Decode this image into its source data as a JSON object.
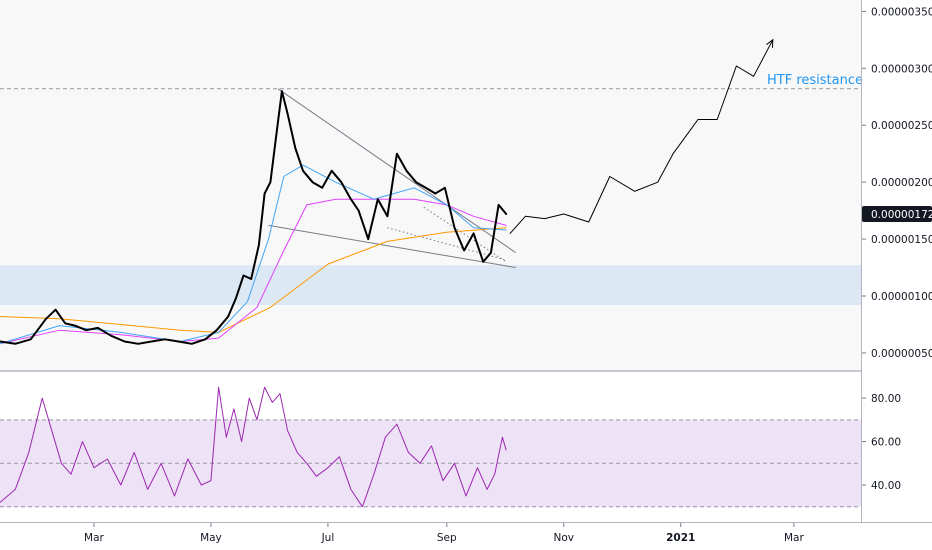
{
  "chart_data": [
    {
      "type": "line",
      "name": "price-panel",
      "y_scale": "linear",
      "ylim": [
        3.5e-07,
        3.6e-06
      ],
      "y_ticks": [
        {
          "value": 3.5e-06,
          "label": "0.00000350"
        },
        {
          "value": 3e-06,
          "label": "0.00000300"
        },
        {
          "value": 2.5e-06,
          "label": "0.00000250"
        },
        {
          "value": 2e-06,
          "label": "0.00000200"
        },
        {
          "value": 1.5e-06,
          "label": "0.00000150"
        },
        {
          "value": 1e-06,
          "label": "0.00000100"
        },
        {
          "value": 5e-07,
          "label": "0.00000050"
        }
      ],
      "x_ticks": [
        {
          "value": "2020-03-01",
          "label": "Mar"
        },
        {
          "value": "2020-05-01",
          "label": "May"
        },
        {
          "value": "2020-07-01",
          "label": "Jul"
        },
        {
          "value": "2020-09-01",
          "label": "Sep"
        },
        {
          "value": "2020-11-01",
          "label": "Nov"
        },
        {
          "value": "2021-01-01",
          "label": "2021"
        },
        {
          "value": "2021-03-01",
          "label": "Mar"
        }
      ],
      "xlim": [
        "2020-01-12",
        "2021-04-05"
      ],
      "last_price": {
        "value": 1.72e-06,
        "label": "0.00000172",
        "color": "#131722"
      },
      "annotation": {
        "text": "HTF resistance",
        "color": "#2196f3"
      },
      "resistance_level": 2.82e-06,
      "support_zone": [
        9.2e-07,
        1.27e-06
      ],
      "colors": {
        "price": "#000000",
        "ema_fast": "#42a5f5",
        "ema_mid": "#e040fb",
        "ema_slow": "#ff9800",
        "zone": "#dce9f4",
        "trendline": "#787b86",
        "projection": "#000000"
      },
      "series": [
        {
          "role": "price",
          "x": [
            "2020-01-12",
            "2020-01-20",
            "2020-01-28",
            "2020-02-05",
            "2020-02-10",
            "2020-02-15",
            "2020-02-20",
            "2020-02-26",
            "2020-03-03",
            "2020-03-10",
            "2020-03-17",
            "2020-03-24",
            "2020-03-31",
            "2020-04-07",
            "2020-04-14",
            "2020-04-21",
            "2020-04-28",
            "2020-05-04",
            "2020-05-10",
            "2020-05-14",
            "2020-05-18",
            "2020-05-22",
            "2020-05-26",
            "2020-05-29",
            "2020-06-01",
            "2020-06-04",
            "2020-06-07",
            "2020-06-10",
            "2020-06-14",
            "2020-06-18",
            "2020-06-23",
            "2020-06-28",
            "2020-07-03",
            "2020-07-08",
            "2020-07-13",
            "2020-07-17",
            "2020-07-22",
            "2020-07-27",
            "2020-08-01",
            "2020-08-06",
            "2020-08-11",
            "2020-08-16",
            "2020-08-21",
            "2020-08-26",
            "2020-08-31",
            "2020-09-05",
            "2020-09-10",
            "2020-09-15",
            "2020-09-20",
            "2020-09-24",
            "2020-09-28",
            "2020-10-02"
          ],
          "y": [
            6e-07,
            5.8e-07,
            6.2e-07,
            8e-07,
            8.8e-07,
            7.6e-07,
            7.4e-07,
            7e-07,
            7.2e-07,
            6.5e-07,
            6e-07,
            5.8e-07,
            6e-07,
            6.2e-07,
            6e-07,
            5.8e-07,
            6.2e-07,
            7e-07,
            8.2e-07,
            9.8e-07,
            1.18e-06,
            1.15e-06,
            1.45e-06,
            1.9e-06,
            2e-06,
            2.4e-06,
            2.8e-06,
            2.6e-06,
            2.3e-06,
            2.1e-06,
            2e-06,
            1.95e-06,
            2.1e-06,
            2e-06,
            1.85e-06,
            1.75e-06,
            1.5e-06,
            1.85e-06,
            1.7e-06,
            2.25e-06,
            2.1e-06,
            2e-06,
            1.95e-06,
            1.9e-06,
            1.95e-06,
            1.6e-06,
            1.4e-06,
            1.55e-06,
            1.3e-06,
            1.38e-06,
            1.8e-06,
            1.72e-06
          ]
        },
        {
          "role": "ema_fast",
          "x": [
            "2020-01-12",
            "2020-02-12",
            "2020-03-15",
            "2020-04-15",
            "2020-05-05",
            "2020-05-20",
            "2020-05-31",
            "2020-06-08",
            "2020-06-18",
            "2020-07-05",
            "2020-07-25",
            "2020-08-15",
            "2020-09-01",
            "2020-09-15",
            "2020-10-02"
          ],
          "y": [
            5.8e-07,
            7.4e-07,
            6.8e-07,
            6e-07,
            6.8e-07,
            9.5e-07,
            1.5e-06,
            2.05e-06,
            2.15e-06,
            2e-06,
            1.85e-06,
            1.95e-06,
            1.8e-06,
            1.6e-06,
            1.58e-06
          ]
        },
        {
          "role": "ema_mid",
          "x": [
            "2020-01-12",
            "2020-02-12",
            "2020-03-15",
            "2020-04-15",
            "2020-05-05",
            "2020-05-25",
            "2020-06-08",
            "2020-06-20",
            "2020-07-05",
            "2020-07-25",
            "2020-08-15",
            "2020-09-01",
            "2020-09-15",
            "2020-10-02"
          ],
          "y": [
            5.8e-07,
            7e-07,
            6.6e-07,
            6e-07,
            6.3e-07,
            9e-07,
            1.4e-06,
            1.8e-06,
            1.85e-06,
            1.85e-06,
            1.85e-06,
            1.8e-06,
            1.7e-06,
            1.62e-06
          ]
        },
        {
          "role": "ema_slow",
          "x": [
            "2020-01-12",
            "2020-02-12",
            "2020-03-15",
            "2020-04-15",
            "2020-05-05",
            "2020-06-01",
            "2020-07-01",
            "2020-08-01",
            "2020-09-01",
            "2020-10-02"
          ],
          "y": [
            8.2e-07,
            8e-07,
            7.5e-07,
            7e-07,
            6.8e-07,
            9e-07,
            1.28e-06,
            1.48e-06,
            1.56e-06,
            1.6e-06
          ]
        },
        {
          "role": "projection",
          "x": [
            "2020-10-04",
            "2020-10-12",
            "2020-10-22",
            "2020-11-01",
            "2020-11-14",
            "2020-11-25",
            "2020-12-08",
            "2020-12-20",
            "2020-12-28",
            "2021-01-10",
            "2021-01-20",
            "2021-01-30",
            "2021-02-08",
            "2021-02-18"
          ],
          "y": [
            1.55e-06,
            1.7e-06,
            1.68e-06,
            1.72e-06,
            1.65e-06,
            2.05e-06,
            1.92e-06,
            2e-06,
            2.25e-06,
            2.55e-06,
            2.55e-06,
            3.02e-06,
            2.93e-06,
            3.25e-06
          ]
        }
      ],
      "trendlines": [
        {
          "style": "solid",
          "x": [
            "2020-06-05",
            "2020-10-07"
          ],
          "y": [
            2.82e-06,
            1.38e-06
          ]
        },
        {
          "style": "solid",
          "x": [
            "2020-05-31",
            "2020-10-07"
          ],
          "y": [
            1.62e-06,
            1.25e-06
          ]
        },
        {
          "style": "dotted",
          "x": [
            "2020-08-01",
            "2020-10-01"
          ],
          "y": [
            1.6e-06,
            1.32e-06
          ]
        },
        {
          "style": "dotted",
          "x": [
            "2020-08-20",
            "2020-10-02"
          ],
          "y": [
            1.78e-06,
            1.3e-06
          ]
        }
      ]
    },
    {
      "type": "line",
      "name": "rsi-panel",
      "ylim": [
        23,
        92
      ],
      "y_ticks": [
        {
          "value": 80,
          "label": "80.00"
        },
        {
          "value": 60,
          "label": "60.00"
        },
        {
          "value": 40,
          "label": "40.00"
        }
      ],
      "band": [
        30,
        70
      ],
      "midline": 50,
      "colors": {
        "line": "#9c27b0",
        "band": "#ede2f6"
      },
      "series": [
        {
          "role": "rsi",
          "x": [
            "2020-01-12",
            "2020-01-20",
            "2020-01-27",
            "2020-02-03",
            "2020-02-08",
            "2020-02-13",
            "2020-02-18",
            "2020-02-24",
            "2020-03-01",
            "2020-03-08",
            "2020-03-15",
            "2020-03-22",
            "2020-03-29",
            "2020-04-05",
            "2020-04-12",
            "2020-04-19",
            "2020-04-26",
            "2020-05-01",
            "2020-05-05",
            "2020-05-09",
            "2020-05-13",
            "2020-05-17",
            "2020-05-21",
            "2020-05-25",
            "2020-05-29",
            "2020-06-02",
            "2020-06-06",
            "2020-06-10",
            "2020-06-15",
            "2020-06-20",
            "2020-06-25",
            "2020-07-01",
            "2020-07-07",
            "2020-07-13",
            "2020-07-19",
            "2020-07-25",
            "2020-07-31",
            "2020-08-06",
            "2020-08-12",
            "2020-08-18",
            "2020-08-24",
            "2020-08-30",
            "2020-09-05",
            "2020-09-11",
            "2020-09-17",
            "2020-09-22",
            "2020-09-26",
            "2020-09-30",
            "2020-10-02"
          ],
          "y": [
            32,
            38,
            55,
            80,
            65,
            50,
            45,
            60,
            48,
            52,
            40,
            55,
            38,
            50,
            35,
            52,
            40,
            42,
            85,
            62,
            75,
            60,
            80,
            70,
            85,
            78,
            82,
            65,
            55,
            50,
            44,
            48,
            53,
            38,
            30,
            45,
            62,
            68,
            55,
            50,
            58,
            42,
            50,
            35,
            48,
            38,
            45,
            62,
            56
          ]
        }
      ],
      "x_ticks": [
        {
          "value": "2020-03-01",
          "label": "Mar"
        },
        {
          "value": "2020-05-01",
          "label": "May"
        },
        {
          "value": "2020-07-01",
          "label": "Jul"
        },
        {
          "value": "2020-09-01",
          "label": "Sep"
        },
        {
          "value": "2020-11-01",
          "label": "Nov"
        },
        {
          "value": "2021-01-01",
          "label": "2021"
        },
        {
          "value": "2021-03-01",
          "label": "Mar"
        }
      ]
    }
  ]
}
